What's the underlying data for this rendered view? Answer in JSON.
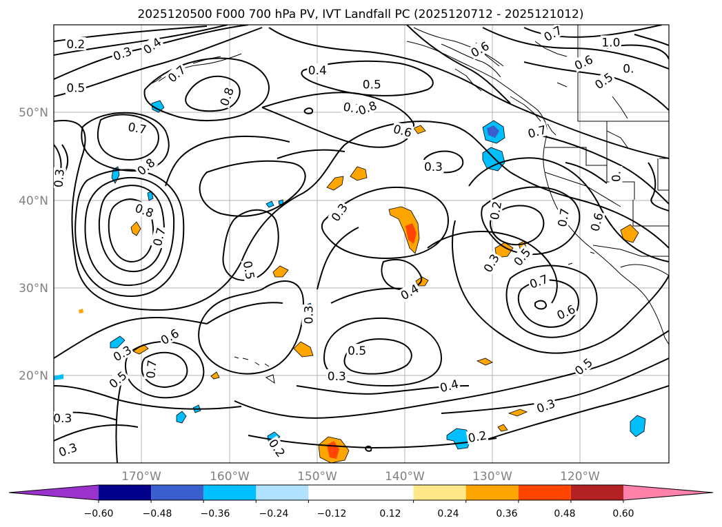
{
  "title": "2025120500 F000 700 hPa PV, IVT Landfall PC (2025120712 - 2025121012)",
  "map": {
    "lat_labels": [
      "50°N",
      "40°N",
      "30°N",
      "20°N"
    ],
    "lon_labels": [
      "170°W",
      "160°W",
      "150°W",
      "140°W",
      "130°W",
      "120°W"
    ],
    "contour_labels": [
      {
        "text": "0.2",
        "lon": -177.5,
        "lat": 57.8,
        "rot": 0
      },
      {
        "text": "0.3",
        "lon": -172.2,
        "lat": 56.7,
        "rot": -20
      },
      {
        "text": "0.4",
        "lon": -168.8,
        "lat": 57.6,
        "rot": -35
      },
      {
        "text": "0.5",
        "lon": -177.5,
        "lat": 52.8,
        "rot": 0
      },
      {
        "text": "0.7",
        "lon": -166.0,
        "lat": 54.4,
        "rot": -40
      },
      {
        "text": "0.8",
        "lon": -160.3,
        "lat": 51.8,
        "rot": -70
      },
      {
        "text": "0.7",
        "lon": -170.5,
        "lat": 48.2,
        "rot": 10
      },
      {
        "text": "0.8",
        "lon": -169.5,
        "lat": 43.8,
        "rot": -40
      },
      {
        "text": "0.3",
        "lon": -179.4,
        "lat": 42.5,
        "rot": -85
      },
      {
        "text": "0.8",
        "lon": -169.7,
        "lat": 38.8,
        "rot": 20
      },
      {
        "text": "0.7",
        "lon": -168.0,
        "lat": 35.8,
        "rot": -75
      },
      {
        "text": "0.5",
        "lon": -157.8,
        "lat": 32.0,
        "rot": 80
      },
      {
        "text": "0.4",
        "lon": -150.0,
        "lat": 54.8,
        "rot": 0
      },
      {
        "text": "0.5",
        "lon": -143.8,
        "lat": 53.2,
        "rot": 0
      },
      {
        "text": "0.7",
        "lon": -146.0,
        "lat": 50.5,
        "rot": 10
      },
      {
        "text": "0.8",
        "lon": -144.3,
        "lat": 50.5,
        "rot": -20
      },
      {
        "text": "0.6",
        "lon": -140.3,
        "lat": 47.9,
        "rot": 15
      },
      {
        "text": "0.3",
        "lon": -136.8,
        "lat": 43.8,
        "rot": 0
      },
      {
        "text": "0.3",
        "lon": -147.5,
        "lat": 38.6,
        "rot": -55
      },
      {
        "text": "0.2",
        "lon": -129.7,
        "lat": 38.8,
        "rot": -80
      },
      {
        "text": "0.4",
        "lon": -139.5,
        "lat": 29.5,
        "rot": -30
      },
      {
        "text": "0.3",
        "lon": -151.0,
        "lat": 26.9,
        "rot": -90
      },
      {
        "text": "0.5",
        "lon": -145.5,
        "lat": 22.8,
        "rot": 0
      },
      {
        "text": "0.3",
        "lon": -147.8,
        "lat": 19.9,
        "rot": 0
      },
      {
        "text": "0.4",
        "lon": -135.0,
        "lat": 18.8,
        "rot": -15
      },
      {
        "text": "0.3",
        "lon": -130.2,
        "lat": 32.8,
        "rot": -60
      },
      {
        "text": "0.5",
        "lon": -126.7,
        "lat": 33.5,
        "rot": -50
      },
      {
        "text": "0.7",
        "lon": -124.8,
        "lat": 30.7,
        "rot": -20
      },
      {
        "text": "0.6",
        "lon": -121.7,
        "lat": 27.2,
        "rot": -25
      },
      {
        "text": "0.5",
        "lon": -119.7,
        "lat": 21.0,
        "rot": -40
      },
      {
        "text": "0.3",
        "lon": -124.0,
        "lat": 16.5,
        "rot": -20
      },
      {
        "text": "0.2",
        "lon": -131.8,
        "lat": 13.0,
        "rot": -10
      },
      {
        "text": "0.2",
        "lon": -154.6,
        "lat": 11.7,
        "rot": 55
      },
      {
        "text": "0.3",
        "lon": -172.2,
        "lat": 22.5,
        "rot": -30
      },
      {
        "text": "0.6",
        "lon": -166.8,
        "lat": 24.4,
        "rot": -30
      },
      {
        "text": "0.7",
        "lon": -168.9,
        "lat": 20.7,
        "rot": -85
      },
      {
        "text": "0.5",
        "lon": -172.7,
        "lat": 19.5,
        "rot": -40
      },
      {
        "text": "0.3",
        "lon": -179.0,
        "lat": 15.1,
        "rot": 0
      },
      {
        "text": "0.3",
        "lon": -178.4,
        "lat": 11.5,
        "rot": -20
      },
      {
        "text": "0.7",
        "lon": -125.0,
        "lat": 47.8,
        "rot": -15
      },
      {
        "text": "0.7",
        "lon": -123.2,
        "lat": 59.0,
        "rot": -30
      },
      {
        "text": "1.0",
        "lon": -116.6,
        "lat": 58.0,
        "rot": 0
      },
      {
        "text": "0.6",
        "lon": -119.7,
        "lat": 55.7,
        "rot": -25
      },
      {
        "text": "0.5",
        "lon": -117.4,
        "lat": 53.6,
        "rot": -35
      },
      {
        "text": "0.",
        "lon": -114.6,
        "lat": 55.0,
        "rot": 0
      },
      {
        "text": "0.6",
        "lon": -131.5,
        "lat": 57.2,
        "rot": -30
      },
      {
        "text": "0.",
        "lon": -116.0,
        "lat": 42.7,
        "rot": -90
      },
      {
        "text": "0.6",
        "lon": -118.2,
        "lat": 37.5,
        "rot": -75
      },
      {
        "text": "0.7",
        "lon": -122.0,
        "lat": 38.0,
        "rot": -80
      }
    ]
  },
  "colorbar": {
    "ticks": [
      "−0.60",
      "−0.48",
      "−0.36",
      "−0.24",
      "−0.12",
      "0.12",
      "0.24",
      "0.36",
      "0.48",
      "0.60"
    ],
    "levels": [
      -0.72,
      -0.6,
      -0.48,
      -0.36,
      -0.24,
      -0.12,
      0.12,
      0.24,
      0.36,
      0.48,
      0.6,
      0.72
    ],
    "colors": [
      "#9933cc",
      "#00008b",
      "#3a5fcd",
      "#00bfff",
      "#b0e2ff",
      "#ffffff",
      "#ffe88a",
      "#ffa500",
      "#ff4500",
      "#b22222",
      "#ff82ab"
    ],
    "extend_min_color": "#9933cc",
    "extend_max_color": "#ff82ab"
  }
}
